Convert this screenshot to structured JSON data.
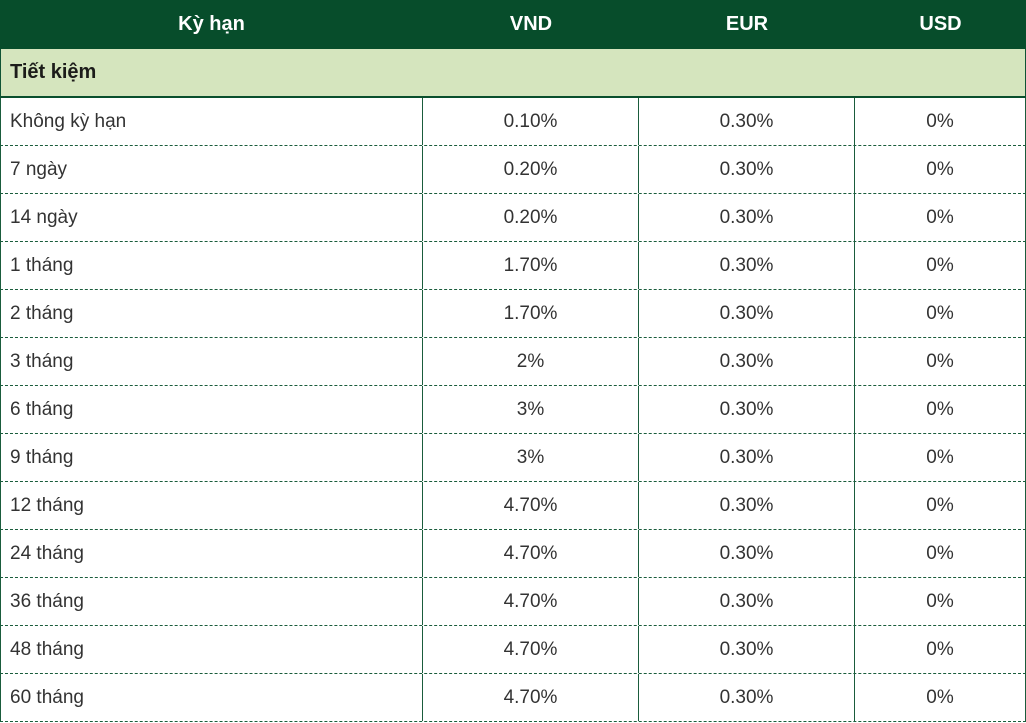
{
  "table": {
    "columns": [
      {
        "label": "Kỳ hạn"
      },
      {
        "label": "VND"
      },
      {
        "label": "EUR"
      },
      {
        "label": "USD"
      }
    ],
    "section_label": "Tiết kiệm",
    "rows": [
      {
        "term": "Không kỳ hạn",
        "vnd": "0.10%",
        "eur": "0.30%",
        "usd": "0%"
      },
      {
        "term": "7 ngày",
        "vnd": "0.20%",
        "eur": "0.30%",
        "usd": "0%"
      },
      {
        "term": "14 ngày",
        "vnd": "0.20%",
        "eur": "0.30%",
        "usd": "0%"
      },
      {
        "term": "1 tháng",
        "vnd": "1.70%",
        "eur": "0.30%",
        "usd": "0%"
      },
      {
        "term": "2 tháng",
        "vnd": "1.70%",
        "eur": "0.30%",
        "usd": "0%"
      },
      {
        "term": "3 tháng",
        "vnd": "2%",
        "eur": "0.30%",
        "usd": "0%"
      },
      {
        "term": "6 tháng",
        "vnd": "3%",
        "eur": "0.30%",
        "usd": "0%"
      },
      {
        "term": "9 tháng",
        "vnd": "3%",
        "eur": "0.30%",
        "usd": "0%"
      },
      {
        "term": "12 tháng",
        "vnd": "4.70%",
        "eur": "0.30%",
        "usd": "0%"
      },
      {
        "term": "24 tháng",
        "vnd": "4.70%",
        "eur": "0.30%",
        "usd": "0%"
      },
      {
        "term": "36 tháng",
        "vnd": "4.70%",
        "eur": "0.30%",
        "usd": "0%"
      },
      {
        "term": "48 tháng",
        "vnd": "4.70%",
        "eur": "0.30%",
        "usd": "0%"
      },
      {
        "term": "60 tháng",
        "vnd": "4.70%",
        "eur": "0.30%",
        "usd": "0%"
      }
    ],
    "colors": {
      "header_bg": "#074d2b",
      "section_bg": "#d5e5be",
      "border_green": "#1a5c3c",
      "header_text": "#ffffff",
      "body_text": "#333333"
    }
  }
}
